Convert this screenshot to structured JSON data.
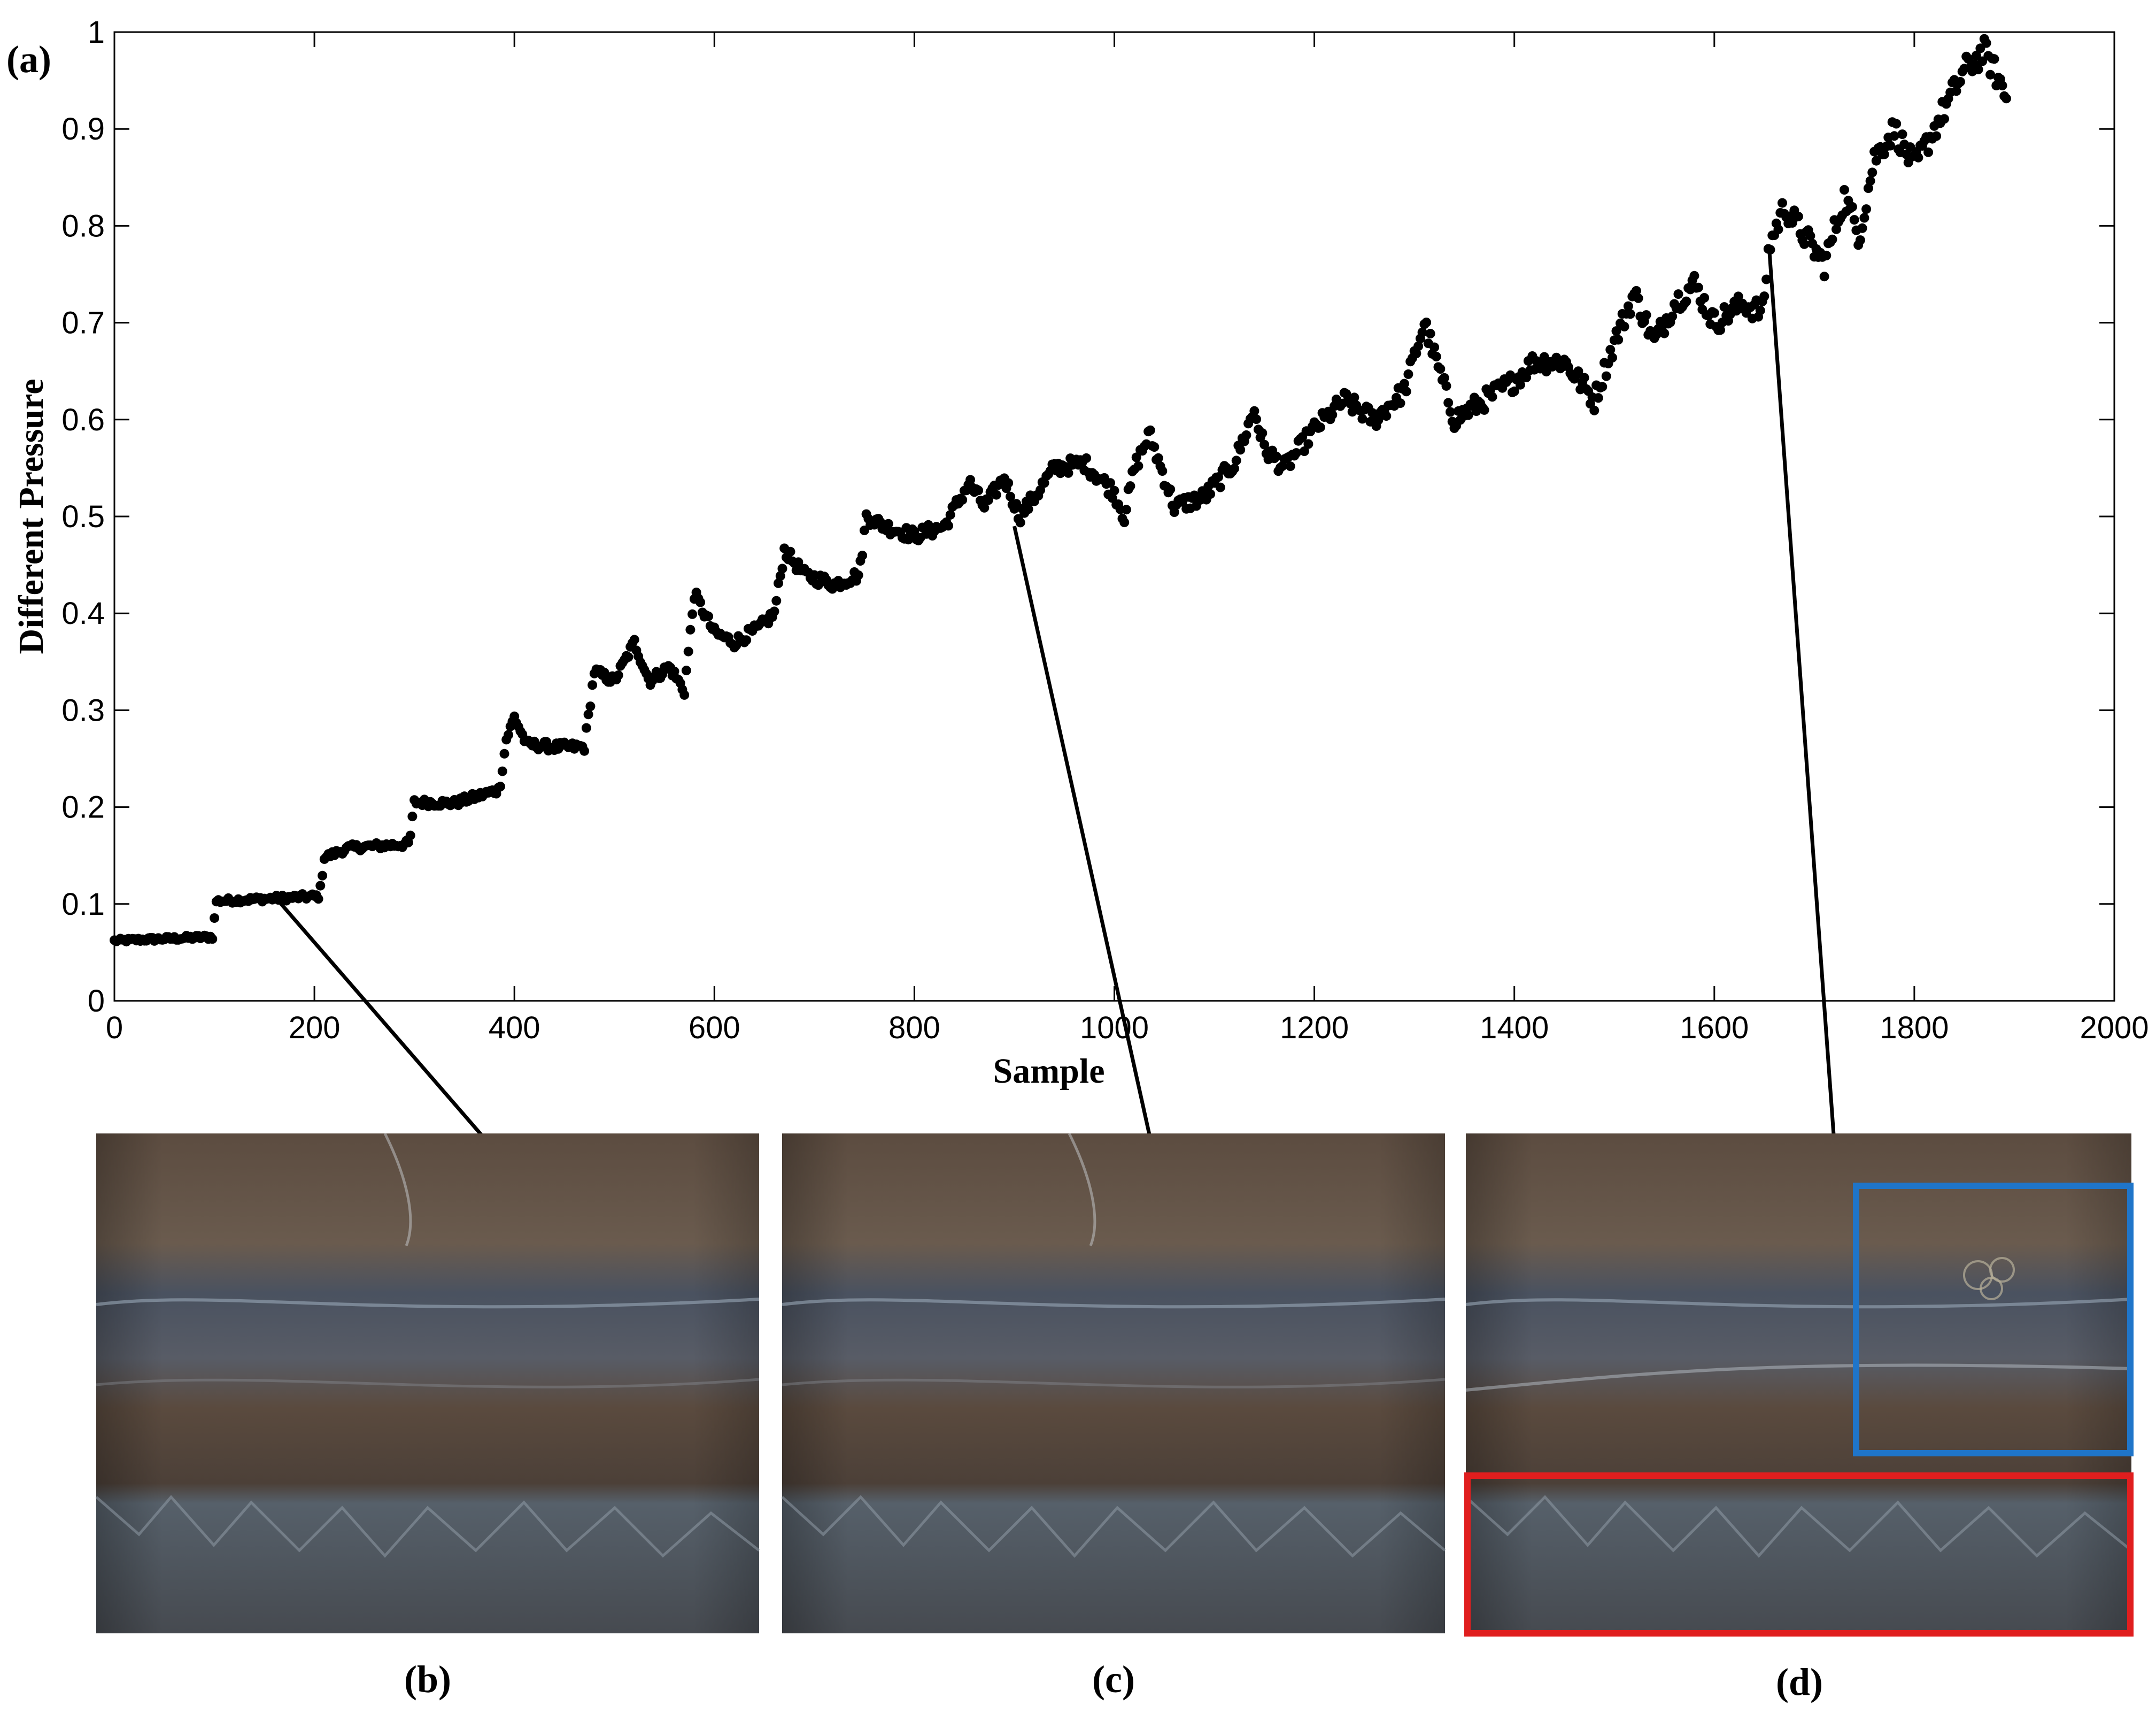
{
  "chart_data": {
    "type": "scatter",
    "panel_label": "(a)",
    "xlabel": "Sample",
    "ylabel": "Different Pressure",
    "xlim": [
      0,
      2000
    ],
    "ylim": [
      0,
      1
    ],
    "xticks": [
      "0",
      "200",
      "400",
      "600",
      "800",
      "1000",
      "1200",
      "1400",
      "1600",
      "1800",
      "2000"
    ],
    "yticks": [
      "0",
      "0.1",
      "0.2",
      "0.3",
      "0.4",
      "0.5",
      "0.6",
      "0.7",
      "0.8",
      "0.9",
      "1"
    ],
    "grid": false,
    "marker_color": "#000000",
    "series_anchor_points": [
      [
        0,
        0.062
      ],
      [
        98,
        0.066
      ],
      [
        102,
        0.103
      ],
      [
        205,
        0.108
      ],
      [
        210,
        0.148
      ],
      [
        235,
        0.158
      ],
      [
        295,
        0.162
      ],
      [
        300,
        0.205
      ],
      [
        340,
        0.204
      ],
      [
        385,
        0.218
      ],
      [
        392,
        0.27
      ],
      [
        400,
        0.293
      ],
      [
        412,
        0.265
      ],
      [
        440,
        0.262
      ],
      [
        470,
        0.262
      ],
      [
        480,
        0.34
      ],
      [
        500,
        0.33
      ],
      [
        520,
        0.37
      ],
      [
        535,
        0.33
      ],
      [
        555,
        0.345
      ],
      [
        570,
        0.32
      ],
      [
        580,
        0.42
      ],
      [
        600,
        0.38
      ],
      [
        620,
        0.37
      ],
      [
        645,
        0.385
      ],
      [
        660,
        0.4
      ],
      [
        670,
        0.465
      ],
      [
        690,
        0.44
      ],
      [
        720,
        0.43
      ],
      [
        745,
        0.44
      ],
      [
        752,
        0.5
      ],
      [
        770,
        0.49
      ],
      [
        800,
        0.48
      ],
      [
        830,
        0.49
      ],
      [
        855,
        0.535
      ],
      [
        870,
        0.51
      ],
      [
        890,
        0.54
      ],
      [
        905,
        0.5
      ],
      [
        920,
        0.52
      ],
      [
        940,
        0.55
      ],
      [
        970,
        0.555
      ],
      [
        1000,
        0.525
      ],
      [
        1010,
        0.5
      ],
      [
        1020,
        0.55
      ],
      [
        1035,
        0.585
      ],
      [
        1060,
        0.51
      ],
      [
        1090,
        0.52
      ],
      [
        1120,
        0.555
      ],
      [
        1140,
        0.61
      ],
      [
        1150,
        0.57
      ],
      [
        1170,
        0.55
      ],
      [
        1200,
        0.59
      ],
      [
        1230,
        0.62
      ],
      [
        1260,
        0.6
      ],
      [
        1290,
        0.63
      ],
      [
        1310,
        0.7
      ],
      [
        1340,
        0.6
      ],
      [
        1370,
        0.62
      ],
      [
        1400,
        0.64
      ],
      [
        1420,
        0.66
      ],
      [
        1450,
        0.66
      ],
      [
        1480,
        0.62
      ],
      [
        1500,
        0.68
      ],
      [
        1520,
        0.73
      ],
      [
        1540,
        0.68
      ],
      [
        1560,
        0.72
      ],
      [
        1580,
        0.74
      ],
      [
        1600,
        0.7
      ],
      [
        1630,
        0.72
      ],
      [
        1648,
        0.71
      ],
      [
        1655,
        0.78
      ],
      [
        1670,
        0.82
      ],
      [
        1690,
        0.79
      ],
      [
        1710,
        0.76
      ],
      [
        1730,
        0.83
      ],
      [
        1745,
        0.79
      ],
      [
        1760,
        0.87
      ],
      [
        1780,
        0.9
      ],
      [
        1800,
        0.86
      ],
      [
        1815,
        0.89
      ],
      [
        1835,
        0.93
      ],
      [
        1850,
        0.96
      ],
      [
        1870,
        0.98
      ],
      [
        1885,
        0.95
      ],
      [
        1893,
        0.93
      ]
    ],
    "annotations": [
      {
        "label": "(b)",
        "sample": 160,
        "value": 0.108
      },
      {
        "label": "(c)",
        "sample": 900,
        "value": 0.49
      },
      {
        "label": "(d)",
        "sample": 1655,
        "value": 0.775
      }
    ]
  },
  "photos": [
    {
      "label": "(b)"
    },
    {
      "label": "(c)"
    },
    {
      "label": "(d)"
    }
  ],
  "highlight_colors": {
    "blue": "#1f75c9",
    "red": "#e01e1e"
  }
}
